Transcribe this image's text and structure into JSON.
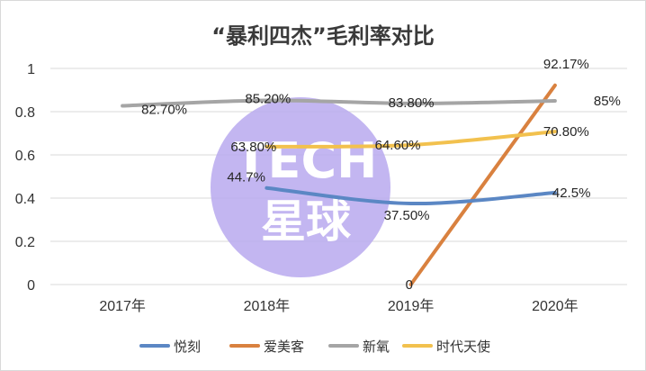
{
  "chart_data": {
    "type": "line",
    "title": "“暴利四杰”毛利率对比",
    "categories": [
      "2017年",
      "2018年",
      "2019年",
      "2020年"
    ],
    "ylim": [
      0,
      1
    ],
    "yticks": [
      0,
      0.2,
      0.4,
      0.6,
      0.8,
      1
    ],
    "ytick_labels": [
      "0",
      "0.2",
      "0.4",
      "0.6",
      "0.8",
      "1"
    ],
    "grid": true,
    "legend_position": "bottom",
    "series": [
      {
        "name": "悦刻",
        "color": "#5b87c4",
        "values": [
          null,
          0.447,
          0.375,
          0.425
        ],
        "labels": [
          null,
          "44.7%",
          "37.50%",
          "42.5%"
        ]
      },
      {
        "name": "爱美客",
        "color": "#d9813f",
        "values": [
          null,
          null,
          0,
          0.9217
        ],
        "labels": [
          null,
          null,
          "0",
          "92.17%"
        ]
      },
      {
        "name": "新氧",
        "color": "#a5a5a5",
        "values": [
          0.827,
          0.852,
          0.838,
          0.85
        ],
        "labels": [
          "82.70%",
          "85.20%",
          "83.80%",
          "85%"
        ]
      },
      {
        "name": "时代天使",
        "color": "#f2c14e",
        "values": [
          null,
          0.638,
          0.646,
          0.708
        ],
        "labels": [
          null,
          "63.80%",
          "64.60%",
          "70.80%"
        ]
      }
    ]
  },
  "watermark": {
    "line1": "TECH",
    "line2": "星球",
    "color": "#b9a9ee"
  }
}
